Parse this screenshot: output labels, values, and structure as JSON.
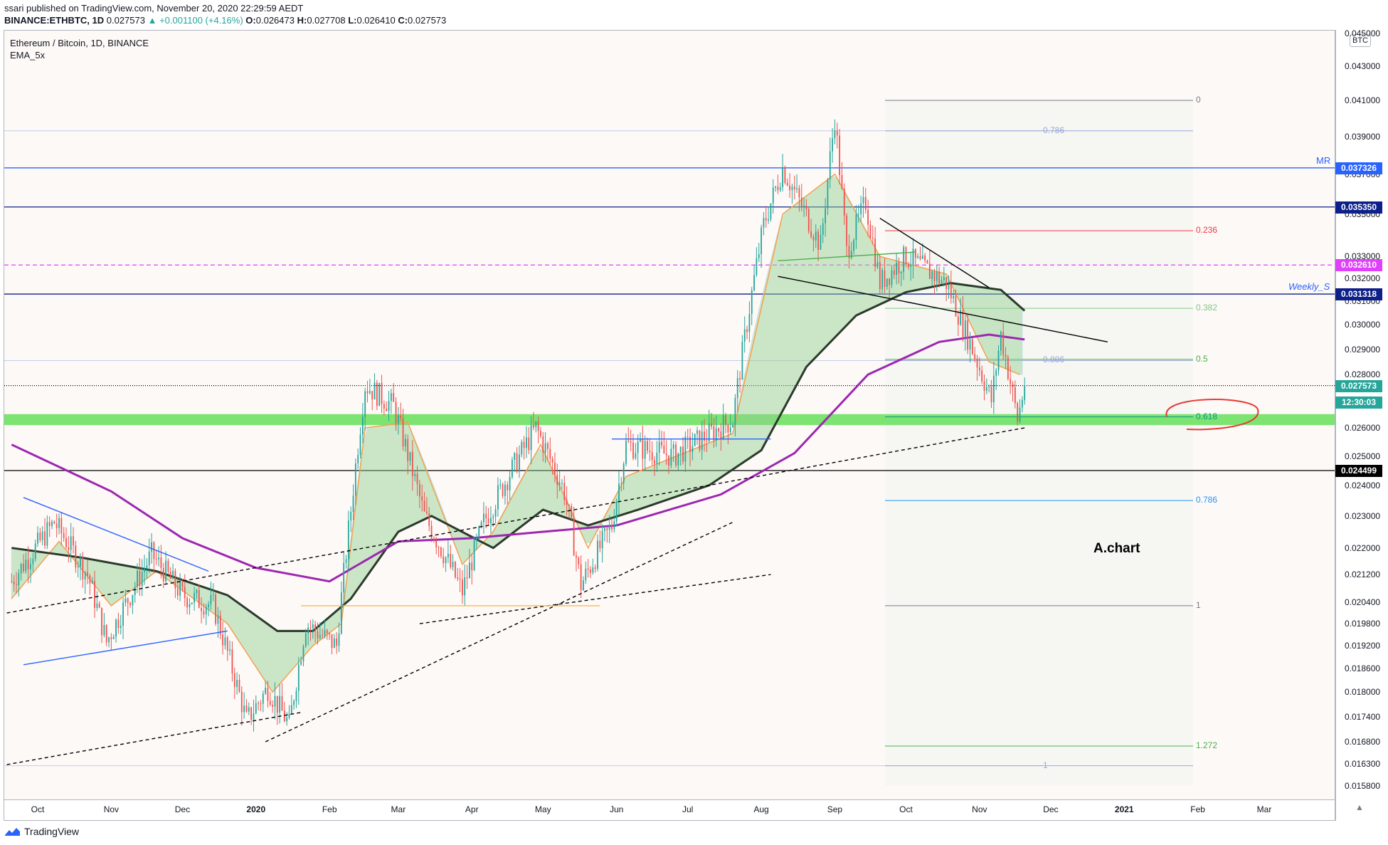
{
  "header": {
    "line1": "ssari published on TradingView.com, November 20, 2020 22:29:59 AEDT",
    "symbol": "BINANCE:ETHBTC, 1D",
    "last": "0.027573",
    "change": "▲ +0.001100 (+4.16%)",
    "o_label": "O:",
    "o": "0.026473",
    "h_label": "H:",
    "h": "0.027708",
    "l_label": "L:",
    "l": "0.026410",
    "c_label": "C:",
    "c": "0.027573"
  },
  "legend": {
    "title": "Ethereum / Bitcoin, 1D, BINANCE",
    "indicator": "EMA_5x"
  },
  "unit_label": "BTC",
  "annotations": {
    "achart": "A.chart",
    "mr": "MR",
    "weekly": "Weekly_S"
  },
  "footer": {
    "brand": "TradingView"
  },
  "colors": {
    "up": "#26a69a",
    "down": "#ef5350",
    "blue_level": "#2962ff",
    "magenta": "#e040fb",
    "purple_ema": "#9c27b0",
    "green_zone": "#66e05a",
    "dark_ema": "#2b3a2b"
  },
  "price_axis": {
    "ticks": [
      "0.045000",
      "0.043000",
      "0.041000",
      "0.039000",
      "0.037000",
      "0.035000",
      "0.033000",
      "0.032000",
      "0.031000",
      "0.030000",
      "0.029000",
      "0.028000",
      "0.027000",
      "0.026000",
      "0.025000",
      "0.024000",
      "0.023000",
      "0.022000",
      "0.021200",
      "0.020400",
      "0.019800",
      "0.019200",
      "0.018600",
      "0.018000",
      "0.017400",
      "0.016800",
      "0.016300",
      "0.015800"
    ],
    "badges": [
      {
        "text": "0.037326",
        "bg": "#2962ff"
      },
      {
        "text": "0.035350",
        "bg": "#0c1f8a"
      },
      {
        "text": "0.032610",
        "bg": "#e040fb"
      },
      {
        "text": "0.031318",
        "bg": "#0c1f8a"
      },
      {
        "text": "0.027573",
        "bg": "#26a69a"
      },
      {
        "text": "12:30:03",
        "bg": "#26a69a"
      },
      {
        "text": "0.024499",
        "bg": "#000000"
      }
    ]
  },
  "time_axis": {
    "labels": [
      {
        "t": "Oct",
        "b": false
      },
      {
        "t": "Nov",
        "b": false
      },
      {
        "t": "Dec",
        "b": false
      },
      {
        "t": "2020",
        "b": true
      },
      {
        "t": "Feb",
        "b": false
      },
      {
        "t": "Mar",
        "b": false
      },
      {
        "t": "Apr",
        "b": false
      },
      {
        "t": "May",
        "b": false
      },
      {
        "t": "Jun",
        "b": false
      },
      {
        "t": "Jul",
        "b": false
      },
      {
        "t": "Aug",
        "b": false
      },
      {
        "t": "Sep",
        "b": false
      },
      {
        "t": "Oct",
        "b": false
      },
      {
        "t": "Nov",
        "b": false
      },
      {
        "t": "Dec",
        "b": false
      },
      {
        "t": "2021",
        "b": true
      },
      {
        "t": "Feb",
        "b": false
      },
      {
        "t": "Mar",
        "b": false
      }
    ]
  },
  "fib_levels": [
    {
      "label": "0",
      "color": "#787b86"
    },
    {
      "label": "0.786",
      "color": "#9aa6d6"
    },
    {
      "label": "0.236",
      "color": "#f23645"
    },
    {
      "label": "0.382",
      "color": "#81c784"
    },
    {
      "label": "0.886",
      "color": "#9aa6d6"
    },
    {
      "label": "0.5",
      "color": "#4caf50"
    },
    {
      "label": "0.618",
      "color": "#089981"
    },
    {
      "label": "0.786",
      "color": "#2196f3"
    },
    {
      "label": "1",
      "color": "#787b86"
    },
    {
      "label": "1.272",
      "color": "#4caf50"
    },
    {
      "label": "1",
      "color": "#9aa6d6"
    }
  ],
  "chart_data": {
    "type": "candlestick",
    "title": "Ethereum / Bitcoin, 1D, BINANCE",
    "y_scale": "log",
    "ylim": [
      0.0155,
      0.0455
    ],
    "x_range": [
      "2019-09-20",
      "2021-03-20"
    ],
    "grid": false,
    "close_path": [
      {
        "date": "2019-09-20",
        "v": 0.021
      },
      {
        "date": "2019-10-08",
        "v": 0.0228
      },
      {
        "date": "2019-10-22",
        "v": 0.0212
      },
      {
        "date": "2019-10-30",
        "v": 0.0193
      },
      {
        "date": "2019-11-18",
        "v": 0.0218
      },
      {
        "date": "2019-12-01",
        "v": 0.0206
      },
      {
        "date": "2019-12-14",
        "v": 0.0203
      },
      {
        "date": "2019-12-28",
        "v": 0.0173
      },
      {
        "date": "2020-01-06",
        "v": 0.0181
      },
      {
        "date": "2020-01-15",
        "v": 0.0172
      },
      {
        "date": "2020-01-22",
        "v": 0.0198
      },
      {
        "date": "2020-02-04",
        "v": 0.0192
      },
      {
        "date": "2020-02-10",
        "v": 0.0232
      },
      {
        "date": "2020-02-16",
        "v": 0.0276
      },
      {
        "date": "2020-02-28",
        "v": 0.0268
      },
      {
        "date": "2020-03-12",
        "v": 0.023
      },
      {
        "date": "2020-03-28",
        "v": 0.0207
      },
      {
        "date": "2020-04-06",
        "v": 0.0228
      },
      {
        "date": "2020-04-28",
        "v": 0.026
      },
      {
        "date": "2020-05-10",
        "v": 0.0238
      },
      {
        "date": "2020-05-17",
        "v": 0.0209
      },
      {
        "date": "2020-05-30",
        "v": 0.0227
      },
      {
        "date": "2020-06-05",
        "v": 0.0254
      },
      {
        "date": "2020-06-25",
        "v": 0.025
      },
      {
        "date": "2020-07-20",
        "v": 0.0263
      },
      {
        "date": "2020-08-02",
        "v": 0.0345
      },
      {
        "date": "2020-08-10",
        "v": 0.0373
      },
      {
        "date": "2020-08-26",
        "v": 0.0335
      },
      {
        "date": "2020-09-01",
        "v": 0.04
      },
      {
        "date": "2020-09-06",
        "v": 0.0332
      },
      {
        "date": "2020-09-14",
        "v": 0.0356
      },
      {
        "date": "2020-09-20",
        "v": 0.0318
      },
      {
        "date": "2020-10-01",
        "v": 0.033
      },
      {
        "date": "2020-10-18",
        "v": 0.0318
      },
      {
        "date": "2020-10-25",
        "v": 0.03
      },
      {
        "date": "2020-11-06",
        "v": 0.027
      },
      {
        "date": "2020-11-10",
        "v": 0.0296
      },
      {
        "date": "2020-11-17",
        "v": 0.0263
      },
      {
        "date": "2020-11-20",
        "v": 0.027573
      }
    ],
    "emas": [
      {
        "name": "ema_fast",
        "color": "#f5a14f",
        "path": [
          {
            "date": "2019-09-20",
            "v": 0.0205
          },
          {
            "date": "2019-10-10",
            "v": 0.0222
          },
          {
            "date": "2019-11-01",
            "v": 0.0203
          },
          {
            "date": "2019-11-20",
            "v": 0.0213
          },
          {
            "date": "2019-12-20",
            "v": 0.0198
          },
          {
            "date": "2020-01-08",
            "v": 0.018
          },
          {
            "date": "2020-01-25",
            "v": 0.0192
          },
          {
            "date": "2020-02-06",
            "v": 0.0198
          },
          {
            "date": "2020-02-16",
            "v": 0.026
          },
          {
            "date": "2020-03-05",
            "v": 0.0262
          },
          {
            "date": "2020-03-28",
            "v": 0.0215
          },
          {
            "date": "2020-04-10",
            "v": 0.0225
          },
          {
            "date": "2020-04-30",
            "v": 0.0254
          },
          {
            "date": "2020-05-20",
            "v": 0.022
          },
          {
            "date": "2020-06-05",
            "v": 0.0243
          },
          {
            "date": "2020-07-20",
            "v": 0.0258
          },
          {
            "date": "2020-08-10",
            "v": 0.035
          },
          {
            "date": "2020-09-01",
            "v": 0.037
          },
          {
            "date": "2020-09-20",
            "v": 0.033
          },
          {
            "date": "2020-10-18",
            "v": 0.0322
          },
          {
            "date": "2020-11-05",
            "v": 0.0285
          },
          {
            "date": "2020-11-18",
            "v": 0.028
          }
        ]
      },
      {
        "name": "ema_slow",
        "color": "#2b3a2b",
        "path": [
          {
            "date": "2019-09-20",
            "v": 0.022
          },
          {
            "date": "2019-10-20",
            "v": 0.0217
          },
          {
            "date": "2019-11-20",
            "v": 0.0213
          },
          {
            "date": "2019-12-20",
            "v": 0.0206
          },
          {
            "date": "2020-01-10",
            "v": 0.0196
          },
          {
            "date": "2020-01-25",
            "v": 0.0196
          },
          {
            "date": "2020-02-10",
            "v": 0.0205
          },
          {
            "date": "2020-03-01",
            "v": 0.0225
          },
          {
            "date": "2020-03-15",
            "v": 0.023
          },
          {
            "date": "2020-04-10",
            "v": 0.022
          },
          {
            "date": "2020-05-01",
            "v": 0.0232
          },
          {
            "date": "2020-05-20",
            "v": 0.0227
          },
          {
            "date": "2020-06-10",
            "v": 0.0232
          },
          {
            "date": "2020-07-10",
            "v": 0.024
          },
          {
            "date": "2020-08-01",
            "v": 0.0252
          },
          {
            "date": "2020-08-20",
            "v": 0.0283
          },
          {
            "date": "2020-09-10",
            "v": 0.0304
          },
          {
            "date": "2020-10-01",
            "v": 0.0314
          },
          {
            "date": "2020-10-20",
            "v": 0.0318
          },
          {
            "date": "2020-11-10",
            "v": 0.0315
          },
          {
            "date": "2020-11-20",
            "v": 0.0306
          }
        ]
      },
      {
        "name": "ema_long",
        "color": "#9c27b0",
        "path": [
          {
            "date": "2019-09-20",
            "v": 0.0254
          },
          {
            "date": "2019-11-01",
            "v": 0.0238
          },
          {
            "date": "2019-12-01",
            "v": 0.0223
          },
          {
            "date": "2020-01-01",
            "v": 0.0214
          },
          {
            "date": "2020-02-01",
            "v": 0.021
          },
          {
            "date": "2020-03-01",
            "v": 0.0222
          },
          {
            "date": "2020-04-01",
            "v": 0.0223
          },
          {
            "date": "2020-05-01",
            "v": 0.0225
          },
          {
            "date": "2020-06-01",
            "v": 0.0227
          },
          {
            "date": "2020-07-15",
            "v": 0.0237
          },
          {
            "date": "2020-08-15",
            "v": 0.0251
          },
          {
            "date": "2020-09-15",
            "v": 0.028
          },
          {
            "date": "2020-10-15",
            "v": 0.0293
          },
          {
            "date": "2020-11-05",
            "v": 0.0296
          },
          {
            "date": "2020-11-20",
            "v": 0.0294
          }
        ]
      }
    ],
    "horizontal_levels": [
      {
        "v": 0.037326,
        "color": "#2962ff",
        "style": "solid"
      },
      {
        "v": 0.03535,
        "color": "#0c1f8a",
        "style": "solid"
      },
      {
        "v": 0.03261,
        "color": "#e040fb",
        "style": "dashed"
      },
      {
        "v": 0.031318,
        "color": "#0c1f8a",
        "style": "solid"
      },
      {
        "v": 0.027573,
        "color": "#000000",
        "style": "dotted"
      },
      {
        "v": 0.024499,
        "color": "#000000",
        "style": "solid"
      }
    ],
    "support_zone": [
      0.0261,
      0.0265
    ]
  }
}
